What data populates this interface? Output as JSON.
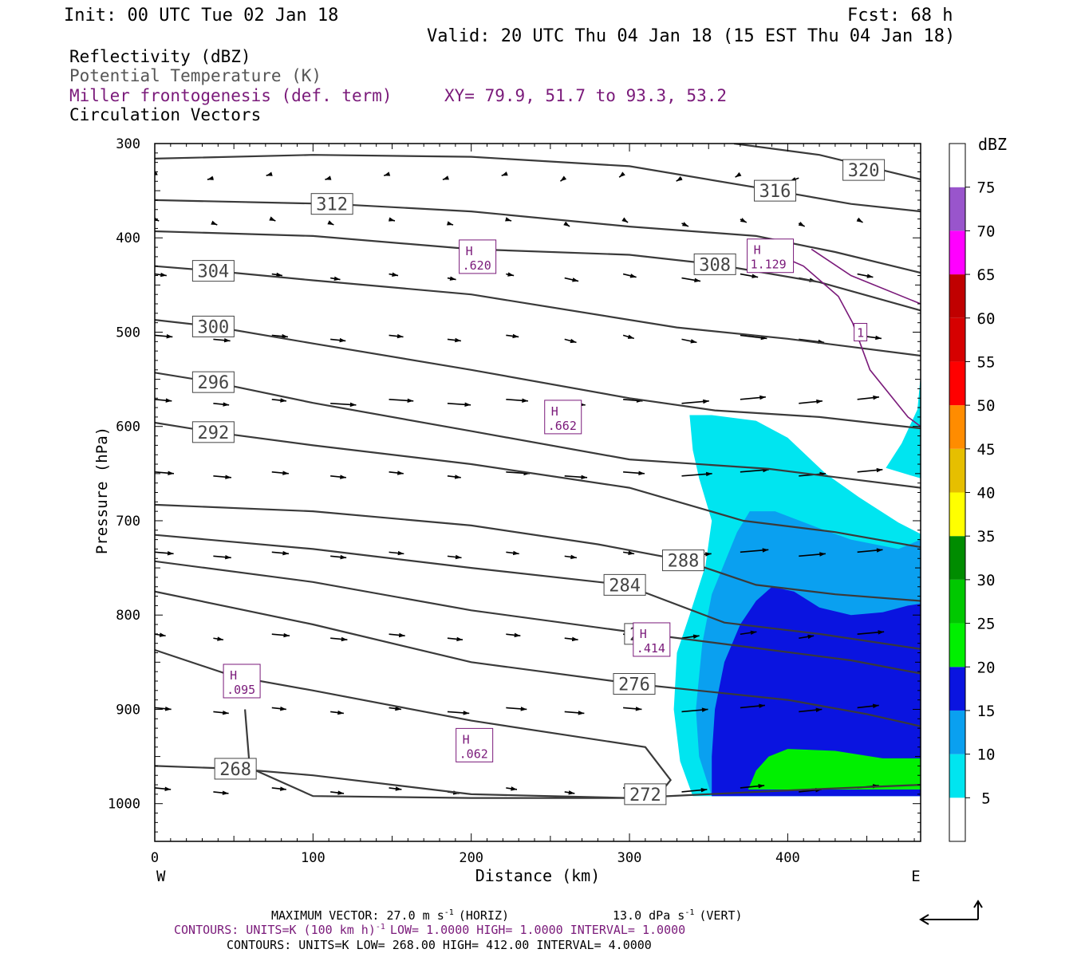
{
  "header": {
    "init": "Init: 00 UTC Tue 02 Jan 18",
    "fcst": "Fcst:   68 h",
    "valid": "Valid: 20 UTC Thu 04 Jan 18 (15 EST Thu 04 Jan 18)",
    "fields": [
      {
        "label": "Reflectivity (dBZ)",
        "color": "#000000"
      },
      {
        "label": "Potential Temperature (K)",
        "color": "#555555"
      },
      {
        "label": "Miller frontogenesis (def. term)",
        "color": "#7a1a7a"
      },
      {
        "label": "Circulation Vectors",
        "color": "#000000"
      }
    ],
    "xy": "XY=  79.9, 51.7 to  93.3, 53.2"
  },
  "chart_data": {
    "type": "cross-section",
    "xlabel": "Distance (km)",
    "ylabel": "Pressure (hPa)",
    "xlim": [
      0,
      484
    ],
    "ylim": [
      1040,
      300
    ],
    "xticks": [
      0,
      100,
      200,
      300,
      400
    ],
    "yticks": [
      300,
      400,
      500,
      600,
      700,
      800,
      900,
      1000
    ],
    "x_end_labels": {
      "left": "W",
      "right": "E"
    },
    "colorbar": {
      "title": "dBZ",
      "levels": [
        5,
        10,
        15,
        20,
        25,
        30,
        35,
        40,
        45,
        50,
        55,
        60,
        65,
        70,
        75
      ],
      "colors": [
        "#ffffff",
        "#00e5f0",
        "#0aa0f0",
        "#0a14e0",
        "#00f000",
        "#00c800",
        "#008c00",
        "#ffff00",
        "#e6bf00",
        "#ff8c00",
        "#ff0000",
        "#d60000",
        "#c00000",
        "#ff00ff",
        "#9955cc",
        "#ffffff"
      ]
    },
    "theta_contours": [
      {
        "value": 320,
        "label": "320",
        "label_at": [
          448,
          328
        ],
        "points": [
          [
            366,
            300
          ],
          [
            420,
            312
          ],
          [
            484,
            338
          ]
        ]
      },
      {
        "value": 316,
        "label": "316",
        "label_at": [
          392,
          350
        ],
        "points": [
          [
            0,
            316
          ],
          [
            100,
            312
          ],
          [
            200,
            314
          ],
          [
            300,
            324
          ],
          [
            392,
            350
          ],
          [
            440,
            364
          ],
          [
            484,
            372
          ]
        ]
      },
      {
        "value": 312,
        "label": "312",
        "label_at": [
          112,
          364
        ],
        "points": [
          [
            0,
            360
          ],
          [
            112,
            364
          ],
          [
            200,
            372
          ],
          [
            300,
            388
          ],
          [
            380,
            398
          ],
          [
            430,
            415
          ],
          [
            484,
            437
          ]
        ]
      },
      {
        "value": 308,
        "label": "308",
        "label_at": [
          354,
          428
        ],
        "points": [
          [
            0,
            393
          ],
          [
            100,
            398
          ],
          [
            200,
            412
          ],
          [
            300,
            418
          ],
          [
            354,
            428
          ],
          [
            420,
            447
          ],
          [
            484,
            477
          ]
        ]
      },
      {
        "value": 304,
        "label": "304",
        "label_at": [
          37,
          435
        ],
        "points": [
          [
            0,
            430
          ],
          [
            37,
            435
          ],
          [
            100,
            445
          ],
          [
            200,
            460
          ],
          [
            330,
            495
          ],
          [
            400,
            507
          ],
          [
            484,
            525
          ]
        ]
      },
      {
        "value": 300,
        "label": "300",
        "label_at": [
          37,
          494
        ],
        "points": [
          [
            0,
            487
          ],
          [
            37,
            494
          ],
          [
            100,
            512
          ],
          [
            200,
            540
          ],
          [
            300,
            570
          ],
          [
            354,
            583
          ],
          [
            420,
            590
          ],
          [
            484,
            602
          ]
        ]
      },
      {
        "value": 296,
        "label": "296",
        "label_at": [
          37,
          553
        ],
        "points": [
          [
            0,
            543
          ],
          [
            37,
            553
          ],
          [
            100,
            575
          ],
          [
            200,
            605
          ],
          [
            300,
            635
          ],
          [
            388,
            645
          ],
          [
            484,
            665
          ]
        ]
      },
      {
        "value": 292,
        "label": "292",
        "label_at": [
          37,
          606
        ],
        "points": [
          [
            0,
            596
          ],
          [
            37,
            606
          ],
          [
            100,
            620
          ],
          [
            200,
            640
          ],
          [
            300,
            665
          ],
          [
            372,
            700
          ],
          [
            430,
            712
          ],
          [
            484,
            728
          ]
        ]
      },
      {
        "value": 288,
        "label": "288",
        "label_at": [
          334,
          742
        ],
        "points": [
          [
            0,
            683
          ],
          [
            100,
            690
          ],
          [
            200,
            705
          ],
          [
            280,
            725
          ],
          [
            334,
            742
          ],
          [
            380,
            768
          ],
          [
            430,
            778
          ],
          [
            484,
            785
          ]
        ]
      },
      {
        "value": 284,
        "label": "284",
        "label_at": [
          297,
          768
        ],
        "points": [
          [
            0,
            715
          ],
          [
            100,
            730
          ],
          [
            200,
            750
          ],
          [
            297,
            768
          ],
          [
            360,
            808
          ],
          [
            420,
            820
          ],
          [
            484,
            836
          ]
        ]
      },
      {
        "value": 280,
        "label": "280",
        "label_at": [
          310,
          820
        ],
        "points": [
          [
            0,
            743
          ],
          [
            100,
            765
          ],
          [
            200,
            795
          ],
          [
            310,
            820
          ],
          [
            380,
            835
          ],
          [
            440,
            848
          ],
          [
            484,
            862
          ]
        ]
      },
      {
        "value": 276,
        "label": "276",
        "label_at": [
          303,
          873
        ],
        "points": [
          [
            0,
            775
          ],
          [
            100,
            810
          ],
          [
            200,
            850
          ],
          [
            303,
            873
          ],
          [
            400,
            890
          ],
          [
            450,
            905
          ],
          [
            484,
            918
          ]
        ]
      },
      {
        "value": 272,
        "label": "272",
        "label_at": [
          310,
          990
        ],
        "points": [
          [
            0,
            837
          ],
          [
            50,
            865
          ],
          [
            100,
            880
          ],
          [
            200,
            912
          ],
          [
            310,
            940
          ],
          [
            326,
            975
          ],
          [
            318,
            992
          ],
          [
            300,
            994
          ],
          [
            200,
            994
          ],
          [
            100,
            992
          ],
          [
            60,
            962
          ],
          [
            57,
            900
          ]
        ]
      },
      {
        "value": 268,
        "label": "268",
        "label_at": [
          51,
          963
        ],
        "points": [
          [
            0,
            960
          ],
          [
            51,
            963
          ],
          [
            100,
            970
          ],
          [
            200,
            990
          ],
          [
            300,
            994
          ],
          [
            400,
            986
          ],
          [
            484,
            980
          ]
        ]
      }
    ],
    "frontogenesis_maxima": [
      {
        "label": "H",
        "value": ".620",
        "at": [
          204,
          420
        ]
      },
      {
        "label": "H",
        "value": "1.129",
        "at": [
          389,
          419
        ]
      },
      {
        "label": "H",
        "value": ".662",
        "at": [
          258,
          590
        ]
      },
      {
        "label": "H",
        "value": ".414",
        "at": [
          314,
          826
        ]
      },
      {
        "label": "H",
        "value": ".095",
        "at": [
          55,
          870
        ]
      },
      {
        "label": "H",
        "value": ".062",
        "at": [
          202,
          938
        ]
      }
    ],
    "frontogenesis_contour": {
      "label": "1",
      "label_at": [
        446,
        500
      ],
      "points": [
        [
          375,
          404
        ],
        [
          410,
          430
        ],
        [
          432,
          462
        ],
        [
          441,
          490
        ],
        [
          452,
          540
        ],
        [
          476,
          590
        ],
        [
          484,
          600
        ]
      ]
    },
    "footer": {
      "max_vector": "MAXIMUM VECTOR:  27.0 m s",
      "max_vector_exp": "-1",
      "max_vector_horiz": "(HORIZ)",
      "max_vector_vert": "13.0 dPa s",
      "max_vector_vert_exp": "-1",
      "max_vector_vert_tail": "(VERT)",
      "contours1": "CONTOURS:  UNITS=K (100 km h)",
      "contours1_exp": "-1",
      "contours1_tail": "LOW=   1.0000        HIGH=   1.0000        INTERVAL=    1.0000",
      "contours2": "CONTOURS:  UNITS=K  LOW=   268.00        HIGH=  412.00        INTERVAL=     4.0000"
    }
  }
}
